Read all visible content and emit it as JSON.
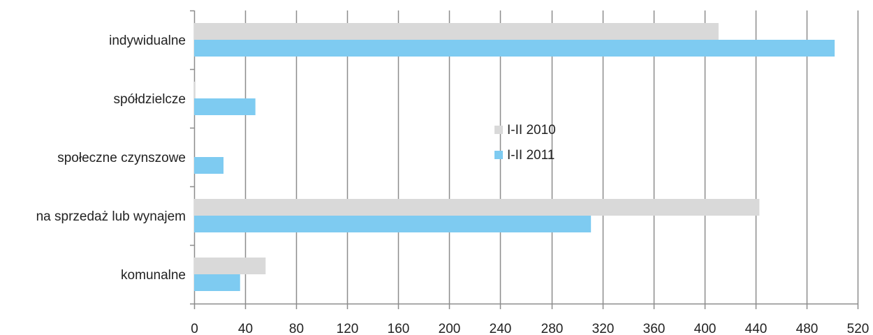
{
  "chart_data": {
    "type": "bar",
    "orientation": "horizontal",
    "categories": [
      "indywidualne",
      "spółdzielcze",
      "społeczne czynszowe",
      "na sprzedaż lub wynajem",
      "komunalne"
    ],
    "series": [
      {
        "name": "I-II 2010",
        "color": "#d9d9d9",
        "values": [
          411,
          1,
          0,
          443,
          56
        ]
      },
      {
        "name": "I-II 2011",
        "color": "#7ecbf1",
        "values": [
          502,
          48,
          23,
          311,
          36
        ]
      }
    ],
    "xlim": [
      0,
      520
    ],
    "xticks": [
      "0",
      "40",
      "80",
      "120",
      "160",
      "200",
      "240",
      "280",
      "320",
      "360",
      "400",
      "440",
      "480",
      "520"
    ],
    "grid": true,
    "legend_position": "center"
  }
}
